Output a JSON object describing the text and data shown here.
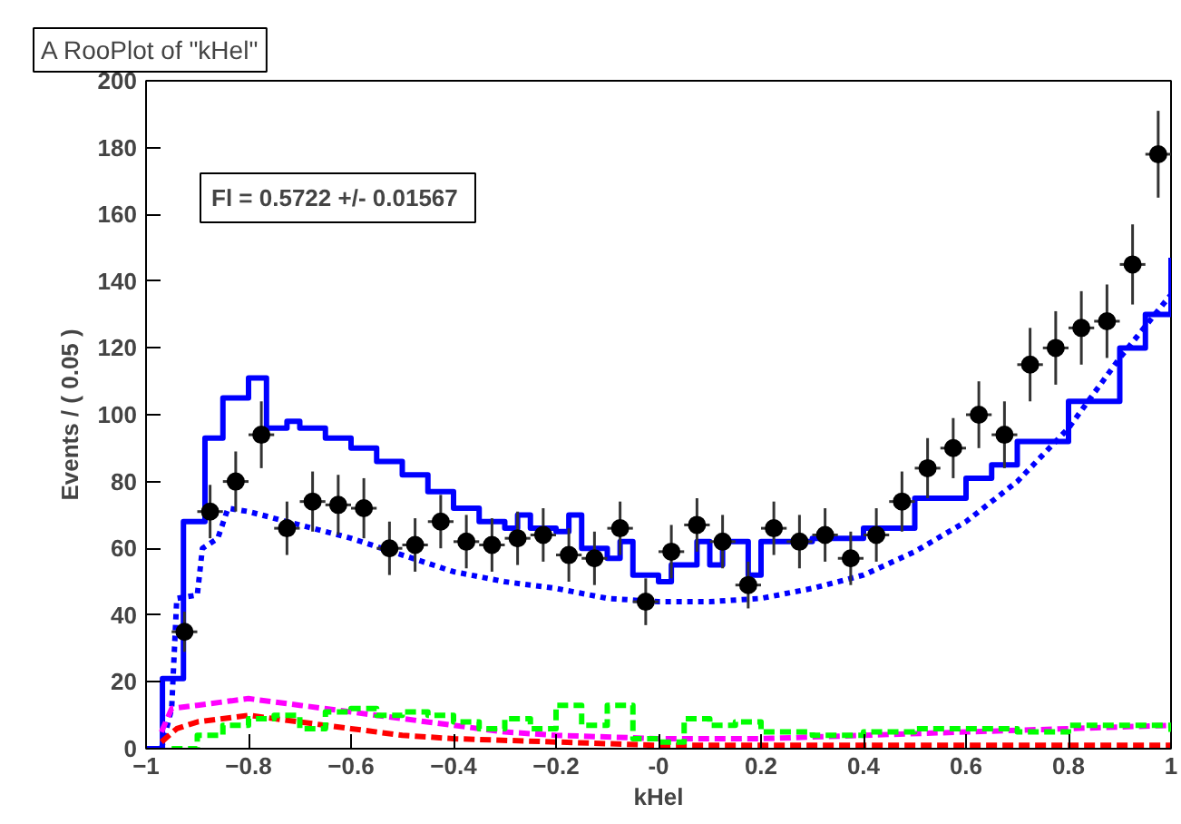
{
  "chart_data": {
    "type": "scatter",
    "title": "A RooPlot of \"kHel\"",
    "xlabel": "kHel",
    "ylabel": "Events / ( 0.05 )",
    "annotations": [
      "Fl =  0.5722 +/- 0.01567"
    ],
    "xlim": [
      -1,
      1
    ],
    "ylim": [
      0,
      200
    ],
    "xticks": [
      -1,
      -0.8,
      -0.6,
      -0.4,
      -0.2,
      {
        "value": 0,
        "label": "-0"
      },
      0.2,
      0.4,
      0.6,
      0.8,
      1
    ],
    "yticks": [
      0,
      20,
      40,
      60,
      80,
      100,
      120,
      140,
      160,
      180,
      200
    ],
    "grid": false,
    "series": [
      {
        "type": "step",
        "color": "#0000ff",
        "line_style": "solid",
        "x": [
          -1,
          -0.968,
          -0.927,
          -0.885,
          -0.85,
          -0.8,
          -0.765,
          -0.725,
          -0.7,
          -0.65,
          -0.6,
          -0.55,
          -0.5,
          -0.45,
          -0.4,
          -0.35,
          -0.3,
          -0.275,
          -0.25,
          -0.2,
          -0.175,
          -0.15,
          -0.1,
          -0.075,
          -0.05,
          0,
          0.025,
          0.075,
          0.1,
          0.125,
          0.175,
          0.2,
          0.3,
          0.4,
          0.5,
          0.6,
          0.65,
          0.7,
          0.8,
          0.9,
          0.95,
          1
        ],
        "values": [
          0,
          21,
          68,
          93,
          105,
          111,
          96,
          98,
          96,
          93,
          90,
          86,
          82,
          77,
          72,
          68,
          66,
          70,
          66,
          65,
          70,
          60,
          57,
          62,
          52,
          50,
          55,
          62,
          55,
          62,
          52,
          62,
          63,
          66,
          75,
          81,
          85,
          92,
          104,
          120,
          130,
          147
        ]
      },
      {
        "type": "line",
        "color": "#0000ff",
        "line_style": "dotted",
        "x": [
          -0.97,
          -0.95,
          -0.94,
          -0.9,
          -0.89,
          -0.86,
          -0.84,
          -0.8,
          -0.7,
          -0.6,
          -0.5,
          -0.4,
          -0.3,
          -0.2,
          -0.1,
          0,
          0.1,
          0.2,
          0.3,
          0.4,
          0.5,
          0.6,
          0.7,
          0.8,
          0.9,
          1
        ],
        "values": [
          0,
          12,
          45,
          46,
          60,
          63,
          72,
          71,
          67,
          63,
          58,
          53,
          50,
          48,
          45,
          44,
          44,
          45,
          48,
          52,
          59,
          68,
          80,
          96,
          117,
          136
        ]
      },
      {
        "type": "line",
        "color": "#ff00ff",
        "line_style": "dashed",
        "x": [
          -0.97,
          -0.95,
          -0.9,
          -0.8,
          -0.7,
          -0.6,
          -0.5,
          -0.4,
          -0.3,
          -0.2,
          0,
          0.2,
          0.4,
          0.6,
          0.8,
          1
        ],
        "values": [
          5,
          12,
          13,
          15,
          13,
          11,
          9,
          7,
          5,
          4,
          3,
          3,
          4,
          5,
          6,
          7
        ]
      },
      {
        "type": "line",
        "color": "#ff0000",
        "line_style": "dashed",
        "x": [
          -0.97,
          -0.94,
          -0.9,
          -0.8,
          -0.7,
          -0.6,
          -0.5,
          -0.4,
          -0.2,
          0,
          0.5,
          1
        ],
        "values": [
          2,
          6,
          8,
          10,
          8,
          6,
          4,
          3,
          2,
          1,
          1,
          1
        ]
      },
      {
        "type": "step",
        "color": "#00ff00",
        "line_style": "dashed",
        "x": [
          -0.95,
          -0.9,
          -0.85,
          -0.8,
          -0.75,
          -0.7,
          -0.65,
          -0.6,
          -0.55,
          -0.5,
          -0.45,
          -0.4,
          -0.35,
          -0.3,
          -0.25,
          -0.2,
          -0.15,
          -0.1,
          -0.05,
          0,
          0.05,
          0.1,
          0.15,
          0.2,
          0.3,
          0.4,
          0.5,
          0.6,
          0.7,
          0.8,
          0.9,
          1
        ],
        "values": [
          0,
          4,
          7,
          9,
          10,
          6,
          11,
          12,
          10,
          11,
          10,
          8,
          6,
          9,
          6,
          13,
          7,
          13,
          3,
          2,
          9,
          7,
          8,
          5,
          4,
          5,
          6,
          6,
          5,
          7,
          7,
          5
        ]
      },
      {
        "color": "#000000",
        "marker": "circle",
        "x": [
          -0.925,
          -0.875,
          -0.825,
          -0.775,
          -0.725,
          -0.675,
          -0.625,
          -0.575,
          -0.525,
          -0.475,
          -0.425,
          -0.375,
          -0.325,
          -0.275,
          -0.225,
          -0.175,
          -0.125,
          -0.075,
          -0.025,
          0.025,
          0.075,
          0.125,
          0.175,
          0.225,
          0.275,
          0.325,
          0.375,
          0.425,
          0.475,
          0.525,
          0.575,
          0.625,
          0.675,
          0.725,
          0.775,
          0.825,
          0.875,
          0.925,
          0.975
        ],
        "values": [
          35,
          71,
          80,
          94,
          66,
          74,
          73,
          72,
          60,
          61,
          68,
          62,
          61,
          63,
          64,
          58,
          57,
          66,
          44,
          59,
          67,
          62,
          49,
          66,
          62,
          64,
          57,
          64,
          74,
          84,
          90,
          100,
          94,
          115,
          120,
          126,
          128,
          145,
          178
        ],
        "errors": [
          6,
          8,
          9,
          10,
          8,
          9,
          9,
          9,
          8,
          8,
          8,
          8,
          8,
          8,
          8,
          8,
          8,
          8,
          7,
          8,
          8,
          8,
          7,
          8,
          8,
          8,
          8,
          8,
          9,
          9,
          9,
          10,
          10,
          11,
          11,
          11,
          11,
          12,
          13
        ],
        "xerrors": [
          0.025,
          0.025,
          0.025,
          0.025,
          0.025,
          0.025,
          0.025,
          0.025,
          0.025,
          0.025,
          0.025,
          0.025,
          0.025,
          0.025,
          0.025,
          0.025,
          0.025,
          0.025,
          0.025,
          0.025,
          0.025,
          0.025,
          0.025,
          0.025,
          0.025,
          0.025,
          0.025,
          0.025,
          0.025,
          0.025,
          0.025,
          0.025,
          0.025,
          0.025,
          0.025,
          0.025,
          0.025,
          0.025,
          0.025
        ]
      }
    ]
  }
}
